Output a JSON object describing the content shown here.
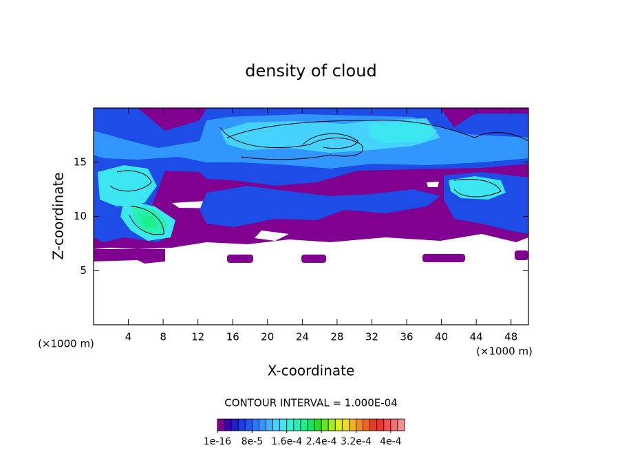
{
  "chart_data": {
    "type": "contour",
    "title": "density of cloud",
    "x_label": "X-coordinate",
    "y_label": "Z-coordinate",
    "x_unit": "(×1000 m)",
    "y_unit": "(×1000 m)",
    "xlim": [
      0,
      50
    ],
    "ylim": [
      0,
      20
    ],
    "xticks": [
      4,
      8,
      12,
      16,
      20,
      24,
      28,
      32,
      36,
      40,
      44,
      48
    ],
    "yticks": [
      5,
      10,
      15
    ],
    "contour_interval": "CONTOUR INTERVAL = 1.000E-04",
    "colorbar": {
      "colors": [
        "#800090",
        "#3c00b4",
        "#1e1ec8",
        "#1e3ce6",
        "#1e5af0",
        "#2878ff",
        "#3296ff",
        "#3cb4ff",
        "#46d2ff",
        "#3ce6f0",
        "#32f0d2",
        "#28f0b4",
        "#1ef08c",
        "#14e664",
        "#28dc28",
        "#64e61e",
        "#a0f01e",
        "#dcf01e",
        "#f0dc1e",
        "#f0b41e",
        "#f08c1e",
        "#f0641e",
        "#e63c1e",
        "#f03232",
        "#f05050",
        "#f07070",
        "#f09090"
      ],
      "lim": [
        0,
        0.000432
      ],
      "ticks": [
        {
          "value": 1e-16,
          "label": "1e-16"
        },
        {
          "value": 8e-05,
          "label": "8e-5"
        },
        {
          "value": 0.00016,
          "label": "1.6e-4"
        },
        {
          "value": 0.00024,
          "label": "2.4e-4"
        },
        {
          "value": 0.00032,
          "label": "3.2e-4"
        },
        {
          "value": 0.0004,
          "label": "4e-4"
        }
      ]
    }
  }
}
